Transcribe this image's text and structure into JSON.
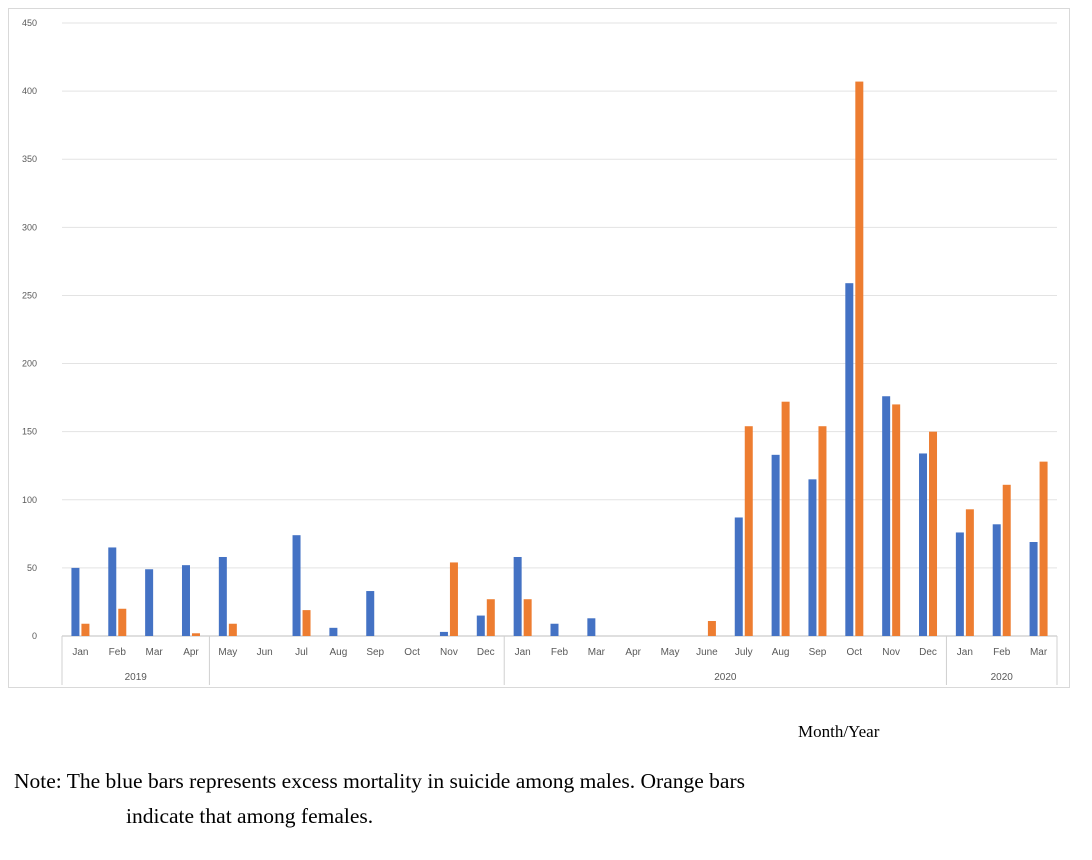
{
  "chart_data": {
    "type": "bar",
    "title": "",
    "xlabel": "Month/Year",
    "ylabel": "",
    "ylim": [
      0,
      450
    ],
    "yticks": [
      0,
      50,
      100,
      150,
      200,
      250,
      300,
      350,
      400,
      450
    ],
    "grid": true,
    "categories": [
      "Jan",
      "Feb",
      "Mar",
      "Apr",
      "May",
      "Jun",
      "Jul",
      "Aug",
      "Sep",
      "Oct",
      "Nov",
      "Dec",
      "Jan",
      "Feb",
      "Mar",
      "Apr",
      "May",
      "June",
      "July",
      "Aug",
      "Sep",
      "Oct",
      "Nov",
      "Dec",
      "Jan",
      "Feb",
      "Mar"
    ],
    "groups": [
      {
        "label": "2019",
        "span": 4
      },
      {
        "label": "",
        "span": 8
      },
      {
        "label": "2020",
        "span": 12
      },
      {
        "label": "2020",
        "span": 3
      }
    ],
    "series": [
      {
        "color": "#4472c4",
        "values": [
          50,
          65,
          49,
          52,
          58,
          0,
          74,
          6,
          33,
          0,
          3,
          15,
          58,
          9,
          13,
          0,
          0,
          0,
          87,
          133,
          115,
          259,
          176,
          134,
          76,
          82,
          69
        ]
      },
      {
        "color": "#ed7d31",
        "values": [
          9,
          20,
          0,
          2,
          9,
          0,
          19,
          0,
          0,
          0,
          54,
          27,
          27,
          0,
          0,
          0,
          0,
          11,
          154,
          172,
          154,
          407,
          170,
          150,
          93,
          111,
          128
        ]
      }
    ]
  },
  "note": {
    "line1": "Note: The blue bars represents excess mortality in suicide among males. Orange bars",
    "line2": "indicate that among females."
  }
}
